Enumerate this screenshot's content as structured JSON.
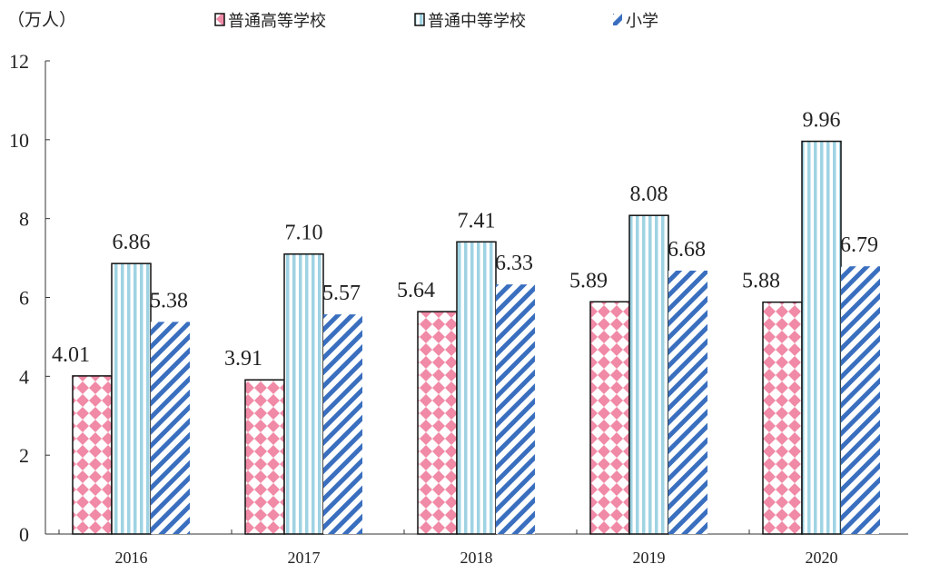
{
  "chart_data": {
    "type": "bar",
    "title": "",
    "ylabel": "（万人）",
    "xlabel": "",
    "categories": [
      "2016",
      "2017",
      "2018",
      "2019",
      "2020"
    ],
    "series": [
      {
        "name": "普通高等学校",
        "values": [
          4.01,
          3.91,
          5.64,
          5.89,
          5.88
        ],
        "color": "#f08aa6",
        "pattern": "diamond"
      },
      {
        "name": "普通中等学校",
        "values": [
          6.86,
          7.1,
          7.41,
          8.08,
          9.96
        ],
        "color": "#9fd3e3",
        "pattern": "vertical"
      },
      {
        "name": "小学",
        "values": [
          5.38,
          5.57,
          6.33,
          6.68,
          6.79
        ],
        "color": "#3a6fbf",
        "pattern": "diagonal"
      }
    ],
    "labels": [
      [
        "4.01",
        "3.91",
        "5.64",
        "5.89",
        "5.88"
      ],
      [
        "6.86",
        "7.10",
        "7.41",
        "8.08",
        "9.96"
      ],
      [
        "5.38",
        "5.57",
        "6.33",
        "6.68",
        "6.79"
      ]
    ],
    "ylim": [
      0,
      12
    ],
    "yticks": [
      "0",
      "2",
      "4",
      "6",
      "8",
      "10",
      "12"
    ],
    "grid": false,
    "legend": "top"
  }
}
